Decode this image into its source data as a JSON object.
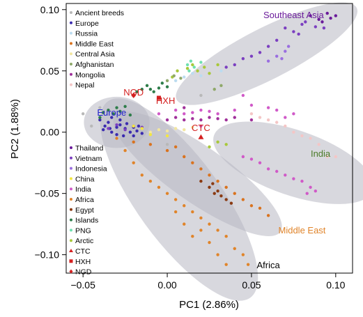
{
  "chart_data": {
    "type": "scatter",
    "xlabel": "PC1 (2.86%)",
    "ylabel": "PC2 (1.88%)",
    "xlim": [
      -0.06,
      0.11
    ],
    "ylim": [
      -0.115,
      0.105
    ],
    "xticks": [
      -0.05,
      0.0,
      0.05,
      0.1
    ],
    "xtick_labels": [
      "−0.05",
      "0.00",
      "0.05",
      "0.10"
    ],
    "yticks": [
      -0.1,
      -0.05,
      0.0,
      0.05,
      0.1
    ],
    "ytick_labels": [
      "−0.10",
      "−0.05",
      "0.00",
      "0.05",
      "0.10"
    ],
    "grid": false,
    "legend_placement": "left",
    "legend": [
      {
        "name": "Ancient breeds",
        "color": "#b8b8b8",
        "marker": "dot"
      },
      {
        "name": "Europe",
        "color": "#3b2bb0",
        "marker": "dot"
      },
      {
        "name": "Russia",
        "color": "#bcdcf0",
        "marker": "dot"
      },
      {
        "name": "Middle East",
        "color": "#d9731f",
        "marker": "dot"
      },
      {
        "name": "Central Asia",
        "color": "#f2e6a0",
        "marker": "dot"
      },
      {
        "name": "Afghanistan",
        "color": "#8fa86a",
        "marker": "dot"
      },
      {
        "name": "Mongolia",
        "color": "#a0309a",
        "marker": "dot"
      },
      {
        "name": "Nepal",
        "color": "#f4c6c6",
        "marker": "dot"
      },
      {
        "name": "Thailand",
        "color": "#6a1a9a",
        "marker": "dot"
      },
      {
        "name": "Vietnam",
        "color": "#7b3fc0",
        "marker": "dot"
      },
      {
        "name": "Indonesia",
        "color": "#9a6ee0",
        "marker": "dot"
      },
      {
        "name": "China",
        "color": "#f3e640",
        "marker": "dot"
      },
      {
        "name": "India",
        "color": "#d05ac8",
        "marker": "dot"
      },
      {
        "name": "Africa",
        "color": "#e0842a",
        "marker": "dot"
      },
      {
        "name": "Egypt",
        "color": "#8a3a12",
        "marker": "dot"
      },
      {
        "name": "Islands",
        "color": "#2e7d4a",
        "marker": "dot"
      },
      {
        "name": "PNG",
        "color": "#6fe0b0",
        "marker": "dot"
      },
      {
        "name": "Arctic",
        "color": "#a8c83a",
        "marker": "dot"
      },
      {
        "name": "CTC",
        "color": "#d42020",
        "marker": "triangle"
      },
      {
        "name": "HXH",
        "color": "#d42020",
        "marker": "square"
      },
      {
        "name": "NGD",
        "color": "#d42020",
        "marker": "diamond"
      }
    ],
    "group_labels": [
      {
        "text": "Southeast Asia",
        "x": 0.075,
        "y": 0.093,
        "color": "#6a1a9a"
      },
      {
        "text": "Europe",
        "x": -0.033,
        "y": 0.0135,
        "color": "#2222cc"
      },
      {
        "text": "India",
        "x": 0.091,
        "y": -0.02,
        "color": "#4a7a28"
      },
      {
        "text": "Middle East",
        "x": 0.08,
        "y": -0.0825,
        "color": "#e0842a"
      },
      {
        "text": "Africa",
        "x": 0.06,
        "y": -0.111,
        "color": "#000000"
      },
      {
        "text": "NGD",
        "x": -0.02,
        "y": 0.03,
        "color": "#d42020"
      },
      {
        "text": "HXH",
        "x": -0.001,
        "y": 0.023,
        "color": "#d42020"
      },
      {
        "text": "CTC",
        "x": 0.02,
        "y": 0.001,
        "color": "#d42020"
      }
    ],
    "series": [
      {
        "name": "Europe",
        "color": "#3b2bb0",
        "points": [
          [
            -0.04,
            0.01
          ],
          [
            -0.037,
            0.005
          ],
          [
            -0.033,
            0.0
          ],
          [
            -0.03,
            0.004
          ],
          [
            -0.028,
            0.006
          ],
          [
            -0.025,
            0.003
          ],
          [
            -0.022,
            0.0
          ],
          [
            -0.02,
            0.004
          ],
          [
            -0.035,
            0.008
          ],
          [
            -0.03,
            -0.002
          ],
          [
            -0.026,
            -0.003
          ],
          [
            -0.018,
            0.001
          ],
          [
            -0.015,
            -0.001
          ],
          [
            -0.033,
            0.012
          ],
          [
            -0.038,
            0.002
          ],
          [
            -0.024,
            0.007
          ],
          [
            -0.02,
            -0.003
          ],
          [
            -0.028,
            0.01
          ],
          [
            -0.017,
            0.005
          ],
          [
            -0.034,
            0.003
          ]
        ]
      },
      {
        "name": "Islands",
        "color": "#2e7d4a",
        "points": [
          [
            -0.04,
            0.012
          ],
          [
            -0.038,
            0.016
          ],
          [
            -0.035,
            0.018
          ],
          [
            -0.032,
            0.015
          ],
          [
            -0.03,
            0.02
          ],
          [
            -0.028,
            0.017
          ],
          [
            -0.025,
            0.021
          ],
          [
            -0.022,
            0.014
          ],
          [
            -0.015,
            0.035
          ],
          [
            -0.012,
            0.038
          ],
          [
            -0.01,
            0.035
          ],
          [
            -0.008,
            0.033
          ],
          [
            -0.005,
            0.036
          ],
          [
            -0.003,
            0.04
          ],
          [
            -0.018,
            0.033
          ],
          [
            0.0,
            0.037
          ]
        ]
      },
      {
        "name": "Arctic",
        "color": "#a8c83a",
        "points": [
          [
            0.003,
            0.045
          ],
          [
            0.006,
            0.05
          ],
          [
            0.012,
            0.052
          ],
          [
            0.015,
            0.055
          ],
          [
            0.018,
            0.05
          ],
          [
            0.022,
            0.053
          ],
          [
            0.03,
            0.055
          ],
          [
            0.025,
            0.048
          ],
          [
            0.03,
            -0.008
          ],
          [
            0.025,
            -0.012
          ],
          [
            0.035,
            -0.01
          ]
        ]
      },
      {
        "name": "PNG",
        "color": "#6fe0b0",
        "points": [
          [
            0.012,
            0.055
          ],
          [
            0.014,
            0.058
          ],
          [
            0.016,
            0.053
          ],
          [
            0.02,
            0.057
          ],
          [
            0.013,
            0.05
          ]
        ]
      },
      {
        "name": "Russia",
        "color": "#bcdcf0",
        "points": [
          [
            0.01,
            0.045
          ],
          [
            0.015,
            0.048
          ],
          [
            0.02,
            0.046
          ],
          [
            0.032,
            0.05
          ],
          [
            0.005,
            0.042
          ]
        ]
      },
      {
        "name": "Afghanistan",
        "color": "#8fa86a",
        "points": [
          [
            0.0,
            0.042
          ],
          [
            0.004,
            0.046
          ],
          [
            0.008,
            0.044
          ],
          [
            0.028,
            0.035
          ],
          [
            0.032,
            0.038
          ]
        ]
      },
      {
        "name": "Mongolia",
        "color": "#a0309a",
        "points": [
          [
            0.0,
            0.01
          ],
          [
            0.005,
            0.012
          ],
          [
            0.01,
            0.01
          ],
          [
            0.015,
            0.011
          ],
          [
            0.02,
            0.01
          ],
          [
            0.025,
            0.012
          ],
          [
            0.03,
            0.011
          ],
          [
            0.035,
            0.01
          ],
          [
            0.04,
            0.012
          ],
          [
            0.05,
            0.01
          ],
          [
            0.01,
            0.02
          ]
        ]
      },
      {
        "name": "Thailand",
        "color": "#6a1a9a",
        "points": [
          [
            0.085,
            0.095
          ],
          [
            0.09,
            0.092
          ],
          [
            0.095,
            0.097
          ],
          [
            0.097,
            0.093
          ],
          [
            0.1,
            0.095
          ],
          [
            0.092,
            0.09
          ]
        ]
      },
      {
        "name": "Vietnam",
        "color": "#7b3fc0",
        "points": [
          [
            0.07,
            0.085
          ],
          [
            0.075,
            0.082
          ],
          [
            0.08,
            0.088
          ],
          [
            0.088,
            0.086
          ],
          [
            0.082,
            0.09
          ],
          [
            0.078,
            0.08
          ],
          [
            0.093,
            0.085
          ],
          [
            0.065,
            0.075
          ],
          [
            0.06,
            0.07
          ],
          [
            0.055,
            0.065
          ],
          [
            0.05,
            0.062
          ],
          [
            0.045,
            0.06
          ],
          [
            0.04,
            0.055
          ],
          [
            0.035,
            0.053
          ],
          [
            -0.035,
            0.003
          ],
          [
            -0.03,
            0.006
          ],
          [
            -0.025,
            0.002
          ],
          [
            -0.02,
            0.005
          ],
          [
            -0.015,
            0.004
          ]
        ]
      },
      {
        "name": "Indonesia",
        "color": "#9a6ee0",
        "points": [
          [
            0.06,
            0.058
          ],
          [
            0.065,
            0.062
          ],
          [
            0.07,
            0.066
          ],
          [
            0.072,
            0.07
          ],
          [
            0.068,
            0.06
          ]
        ]
      },
      {
        "name": "India",
        "color": "#d05ac8",
        "points": [
          [
            0.045,
            0.03
          ],
          [
            0.05,
            0.022
          ],
          [
            0.06,
            0.02
          ],
          [
            0.065,
            0.018
          ],
          [
            0.07,
            0.012
          ],
          [
            0.075,
            0.015
          ],
          [
            0.045,
            -0.02
          ],
          [
            0.05,
            -0.022
          ],
          [
            0.055,
            -0.025
          ],
          [
            0.06,
            -0.03
          ],
          [
            0.065,
            -0.032
          ],
          [
            0.07,
            -0.035
          ],
          [
            0.075,
            -0.038
          ],
          [
            0.08,
            -0.04
          ],
          [
            0.085,
            -0.045
          ],
          [
            0.088,
            -0.048
          ],
          [
            0.083,
            -0.05
          ],
          [
            0.02,
            0.005
          ],
          [
            0.03,
            0.015
          ],
          [
            0.04,
            0.018
          ],
          [
            -0.005,
            0.015
          ],
          [
            0.005,
            0.018
          ],
          [
            0.01,
            0.015
          ],
          [
            0.015,
            0.016
          ],
          [
            0.02,
            0.018
          ],
          [
            0.025,
            0.017
          ]
        ]
      },
      {
        "name": "Nepal",
        "color": "#f4c6c6",
        "points": [
          [
            0.05,
            0.015
          ],
          [
            0.055,
            0.012
          ],
          [
            0.06,
            0.01
          ],
          [
            0.065,
            0.008
          ],
          [
            0.07,
            0.005
          ],
          [
            0.075,
            0.0
          ],
          [
            0.08,
            -0.003
          ],
          [
            0.085,
            -0.005
          ],
          [
            0.09,
            -0.01
          ],
          [
            0.095,
            -0.02
          ],
          [
            0.1,
            -0.02
          ]
        ]
      },
      {
        "name": "Central Asia",
        "color": "#f2e6a0",
        "points": [
          [
            -0.01,
            0.0
          ],
          [
            -0.005,
            0.002
          ],
          [
            0.0,
            0.001
          ],
          [
            0.005,
            0.003
          ],
          [
            0.01,
            0.002
          ],
          [
            0.015,
            0.004
          ]
        ]
      },
      {
        "name": "China",
        "color": "#f3e640",
        "points": [
          [
            -0.02,
            0.005
          ],
          [
            -0.015,
            0.003
          ],
          [
            -0.01,
            -0.002
          ],
          [
            0.0,
            -0.003
          ]
        ]
      },
      {
        "name": "Ancient breeds",
        "color": "#b8b8b8",
        "points": [
          [
            -0.05,
            0.015
          ],
          [
            -0.045,
            0.005
          ],
          [
            -0.04,
            0.02
          ],
          [
            0.0,
            -0.01
          ],
          [
            0.02,
            0.03
          ]
        ]
      },
      {
        "name": "Africa",
        "color": "#e0842a",
        "points": [
          [
            -0.03,
            -0.005
          ],
          [
            -0.025,
            -0.015
          ],
          [
            -0.02,
            -0.025
          ],
          [
            -0.015,
            -0.035
          ],
          [
            -0.01,
            -0.04
          ],
          [
            -0.005,
            -0.045
          ],
          [
            0.0,
            -0.05
          ],
          [
            0.005,
            -0.055
          ],
          [
            0.01,
            -0.06
          ],
          [
            0.015,
            -0.065
          ],
          [
            0.02,
            -0.07
          ],
          [
            0.025,
            -0.075
          ],
          [
            0.03,
            -0.08
          ],
          [
            0.035,
            -0.085
          ],
          [
            0.04,
            -0.095
          ],
          [
            0.045,
            -0.1
          ],
          [
            0.048,
            -0.108
          ],
          [
            0.015,
            -0.085
          ],
          [
            0.025,
            -0.09
          ],
          [
            0.03,
            -0.1
          ],
          [
            0.035,
            -0.108
          ],
          [
            0.01,
            -0.075
          ],
          [
            0.005,
            -0.065
          ],
          [
            0.02,
            -0.08
          ]
        ]
      },
      {
        "name": "Middle East",
        "color": "#d9731f",
        "points": [
          [
            0.0,
            -0.015
          ],
          [
            0.01,
            -0.02
          ],
          [
            0.015,
            -0.025
          ],
          [
            0.02,
            -0.03
          ],
          [
            0.025,
            -0.035
          ],
          [
            0.03,
            -0.04
          ],
          [
            0.035,
            -0.045
          ],
          [
            0.04,
            -0.05
          ],
          [
            0.045,
            -0.055
          ],
          [
            0.05,
            -0.06
          ],
          [
            0.055,
            -0.062
          ],
          [
            0.06,
            -0.068
          ],
          [
            -0.01,
            -0.01
          ],
          [
            0.005,
            -0.012
          ],
          [
            -0.02,
            -0.008
          ]
        ]
      },
      {
        "name": "Egypt",
        "color": "#8a3a12",
        "points": [
          [
            0.02,
            -0.04
          ],
          [
            0.025,
            -0.045
          ],
          [
            0.028,
            -0.05
          ],
          [
            0.032,
            -0.052
          ],
          [
            0.035,
            -0.055
          ],
          [
            0.03,
            -0.048
          ],
          [
            0.038,
            -0.058
          ],
          [
            0.027,
            -0.042
          ]
        ]
      },
      {
        "name": "CTC",
        "color": "#d42020",
        "marker": "triangle",
        "points": [
          [
            0.02,
            -0.004
          ]
        ]
      },
      {
        "name": "HXH",
        "color": "#d42020",
        "marker": "square",
        "points": [
          [
            -0.005,
            0.028
          ]
        ]
      },
      {
        "name": "NGD",
        "color": "#d42020",
        "marker": "diamond",
        "points": [
          [
            -0.02,
            0.03
          ]
        ]
      }
    ],
    "ellipses": [
      {
        "name": "europe-ellipse",
        "cx": -0.03,
        "cy": 0.008,
        "rx": 0.0195,
        "ry": 0.011,
        "angle": 0
      },
      {
        "name": "southeast-asia-ellipse",
        "cx": 0.059,
        "cy": 0.064,
        "rx": 0.06,
        "ry": 0.011,
        "angle": 27
      },
      {
        "name": "india-ellipse",
        "cx": 0.075,
        "cy": -0.025,
        "rx": 0.05,
        "ry": 0.014,
        "angle": -19
      },
      {
        "name": "middle-east-ellipse",
        "cx": 0.018,
        "cy": -0.034,
        "rx": 0.06,
        "ry": 0.012,
        "angle": -35
      },
      {
        "name": "africa-ellipse",
        "cx": 0.007,
        "cy": -0.055,
        "rx": 0.072,
        "ry": 0.018,
        "angle": -54
      }
    ]
  }
}
